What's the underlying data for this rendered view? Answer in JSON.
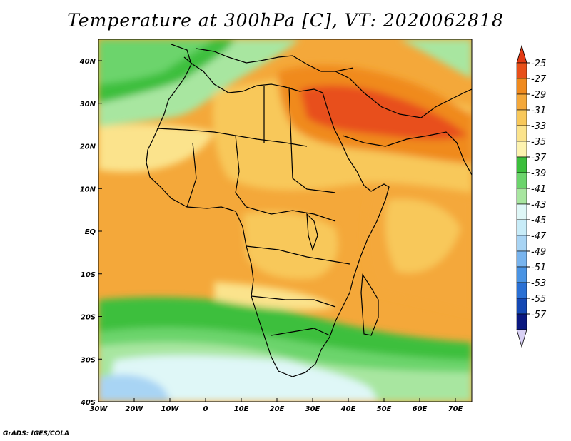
{
  "title": "Temperature at 300hPa [C], VT: 2020062818",
  "credit": "GrADS: IGES/COLA",
  "map": {
    "lon_labels": [
      "30W",
      "20W",
      "10W",
      "0",
      "10E",
      "20E",
      "30E",
      "40E",
      "50E",
      "60E",
      "70E"
    ],
    "lat_labels": [
      "40N",
      "30N",
      "20N",
      "10N",
      "EQ",
      "10S",
      "20S",
      "30S",
      "40S"
    ],
    "field_colors": {
      "warmest": "#e8501a",
      "very_warm": "#f08a1e",
      "warm": "#f4a83a",
      "mild": "#f8c85a",
      "pale": "#fbe38c",
      "green_dark": "#3cbf3c",
      "green_mid": "#6cd46c",
      "green_light": "#a8e6a0",
      "cyan": "#dff7f7",
      "blue_light": "#a8d4f4",
      "blue_mid": "#78b4ee"
    }
  },
  "colorbar": {
    "labels": [
      "-25",
      "-27",
      "-29",
      "-31",
      "-33",
      "-35",
      "-37",
      "-39",
      "-41",
      "-43",
      "-45",
      "-47",
      "-49",
      "-51",
      "-53",
      "-55",
      "-57"
    ],
    "colors": [
      "#e8501a",
      "#f08a1e",
      "#f4a83a",
      "#f8c85a",
      "#fbe38c",
      "#fdf3b0",
      "#3cbf3c",
      "#6cd46c",
      "#a8e6a0",
      "#dff7f7",
      "#c8ecf8",
      "#a8d4f4",
      "#78b4ee",
      "#4a94e4",
      "#2a70d4",
      "#1448b4",
      "#0a1880"
    ],
    "top_triangle_color": "#e23a14",
    "bottom_triangle_color": "#d8d0f4"
  }
}
